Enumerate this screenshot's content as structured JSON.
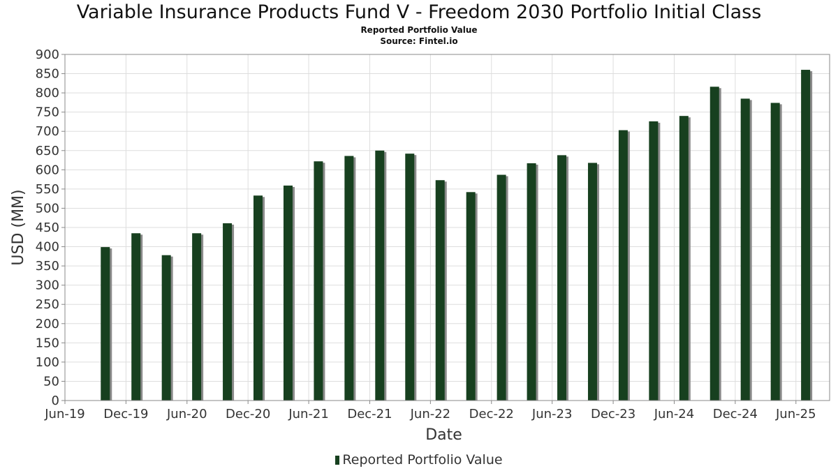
{
  "title": "Variable Insurance Products Fund V - Freedom 2030 Portfolio Initial Class",
  "subtitle": "Reported Portfolio Value",
  "source": "Source: Fintel.io",
  "colors": {
    "bar": "#17401f",
    "bar_shadow": "#8a8a8a",
    "grid": "#dddddd",
    "axis": "#888888"
  },
  "chart_data": {
    "type": "bar",
    "xlabel": "Date",
    "ylabel": "USD (MM)",
    "ylim": [
      0,
      900
    ],
    "yticks": [
      0,
      50,
      100,
      150,
      200,
      250,
      300,
      350,
      400,
      450,
      500,
      550,
      600,
      650,
      700,
      750,
      800,
      850,
      900
    ],
    "xlim": [
      "2019-06-01",
      "2025-09-10"
    ],
    "xtick_labels": [
      "Jun-19",
      "Dec-19",
      "Jun-20",
      "Dec-20",
      "Jun-21",
      "Dec-21",
      "Jun-22",
      "Dec-22",
      "Jun-23",
      "Dec-23",
      "Jun-24",
      "Dec-24",
      "Jun-25"
    ],
    "xtick_dates": [
      "2019-06-01",
      "2019-12-01",
      "2020-06-01",
      "2020-12-01",
      "2021-06-01",
      "2021-12-01",
      "2022-06-01",
      "2022-12-01",
      "2023-06-01",
      "2023-12-01",
      "2024-06-01",
      "2024-12-01",
      "2025-06-01"
    ],
    "grid": true,
    "legend_position": "bottom",
    "series": [
      {
        "name": "Reported Portfolio Value",
        "x": [
          "2019-09-30",
          "2019-12-31",
          "2020-03-31",
          "2020-06-30",
          "2020-09-30",
          "2020-12-31",
          "2021-03-31",
          "2021-06-30",
          "2021-09-30",
          "2021-12-31",
          "2022-03-31",
          "2022-06-30",
          "2022-09-30",
          "2022-12-31",
          "2023-03-31",
          "2023-06-30",
          "2023-09-30",
          "2023-12-31",
          "2024-03-31",
          "2024-06-30",
          "2024-09-30",
          "2024-12-31",
          "2025-03-31",
          "2025-06-30"
        ],
        "values": [
          399,
          435,
          378,
          435,
          461,
          533,
          559,
          622,
          636,
          650,
          642,
          573,
          542,
          587,
          617,
          638,
          618,
          703,
          726,
          740,
          816,
          785,
          774,
          860
        ]
      }
    ]
  }
}
